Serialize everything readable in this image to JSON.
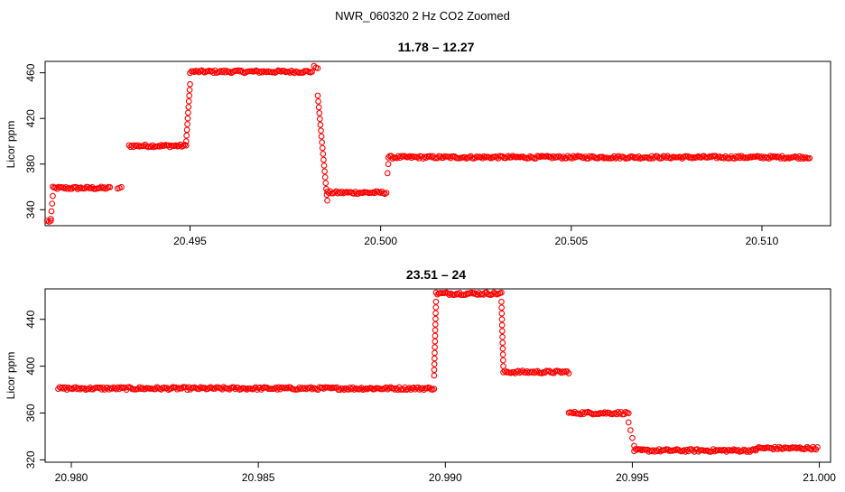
{
  "figure": {
    "title": "NWR_060320  2 Hz CO2 Zoomed"
  },
  "colors": {
    "points": "#ff0000",
    "axis": "#000000"
  },
  "chart_data": [
    {
      "type": "scatter",
      "title": "11.78 – 12.27",
      "xlabel": "",
      "ylabel": "Licor ppm",
      "xlim": [
        20.4912,
        20.5118
      ],
      "ylim": [
        326,
        470
      ],
      "xticks": [
        20.495,
        20.5,
        20.505,
        20.51
      ],
      "xtick_labels": [
        "20.495",
        "20.500",
        "20.505",
        "20.510"
      ],
      "yticks": [
        340,
        380,
        420,
        460
      ],
      "ytick_labels": [
        "340",
        "380",
        "420",
        "460"
      ],
      "grid": false,
      "marker": "open-circle",
      "segments": [
        {
          "x": [
            20.49125,
            20.49135
          ],
          "y": [
            330,
            330
          ]
        },
        {
          "x": [
            20.49135,
            20.4914
          ],
          "y": [
            332,
            352
          ]
        },
        {
          "x": [
            20.4914,
            20.4929
          ],
          "y": [
            359,
            359
          ]
        },
        {
          "x": [
            20.4931,
            20.4932
          ],
          "y": [
            359,
            359
          ]
        },
        {
          "x": [
            20.4934,
            20.4949
          ],
          "y": [
            396,
            396
          ]
        },
        {
          "x": [
            20.4949,
            20.495
          ],
          "y": [
            400,
            450
          ]
        },
        {
          "x": [
            20.495,
            20.4982
          ],
          "y": [
            461,
            461
          ]
        },
        {
          "x": [
            20.49825,
            20.49835
          ],
          "y": [
            465,
            465
          ]
        },
        {
          "x": [
            20.49835,
            20.4986
          ],
          "y": [
            440,
            348
          ]
        },
        {
          "x": [
            20.4986,
            20.50015
          ],
          "y": [
            355,
            355
          ]
        },
        {
          "x": [
            20.50018,
            20.5002
          ],
          "y": [
            372,
            380
          ]
        },
        {
          "x": [
            20.5002,
            20.51125
          ],
          "y": [
            386,
            386
          ]
        }
      ]
    },
    {
      "type": "scatter",
      "title": "23.51 – 24",
      "xlabel": "",
      "ylabel": "Licor ppm",
      "xlim": [
        20.9793,
        21.0003
      ],
      "ylim": [
        318,
        466
      ],
      "xticks": [
        20.98,
        20.985,
        20.99,
        20.995,
        21.0
      ],
      "xtick_labels": [
        "20.980",
        "20.985",
        "20.990",
        "20.995",
        "21.000"
      ],
      "yticks": [
        320,
        360,
        400,
        440
      ],
      "ytick_labels": [
        "320",
        "360",
        "400",
        "440"
      ],
      "grid": false,
      "marker": "open-circle",
      "segments": [
        {
          "x": [
            20.97965,
            20.9897
          ],
          "y": [
            381,
            381
          ]
        },
        {
          "x": [
            20.9897,
            20.98975
          ],
          "y": [
            392,
            455
          ]
        },
        {
          "x": [
            20.98975,
            20.9915
          ],
          "y": [
            462,
            462
          ]
        },
        {
          "x": [
            20.9915,
            20.99155
          ],
          "y": [
            455,
            400
          ]
        },
        {
          "x": [
            20.99155,
            20.9933
          ],
          "y": [
            395,
            395
          ]
        },
        {
          "x": [
            20.9933,
            20.9949
          ],
          "y": [
            360,
            360
          ]
        },
        {
          "x": [
            20.9949,
            20.99505
          ],
          "y": [
            352,
            332
          ]
        },
        {
          "x": [
            20.99505,
            20.9983
          ],
          "y": [
            328,
            328
          ]
        },
        {
          "x": [
            20.9983,
            20.99995
          ],
          "y": [
            330,
            330
          ]
        }
      ]
    }
  ]
}
